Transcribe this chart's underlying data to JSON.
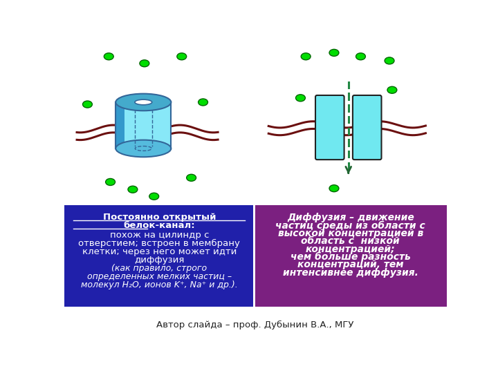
{
  "bg_color": "#ffffff",
  "left_panel_color": "#2020aa",
  "right_panel_color": "#7b2080",
  "panel_text_color": "#ffffff",
  "membrane_color": "#6b1010",
  "particle_color": "#00dd00",
  "particle_edge": "#006600",
  "channel_fill": "#70e8f0",
  "channel_edge": "#222222",
  "dashed_line_color": "#228844",
  "arrow_color": "#226633",
  "author_text": "Автор слайда – проф. Дубынин В.А., МГУ",
  "left_title1": "Постоянно открытый",
  "left_title2": "белок-канал:",
  "left_body1": "похож на цилиндр с",
  "left_body2": "отверстием; встроен в мембрану",
  "left_body3": "клетки; через него может идти",
  "left_body4": "диффузия",
  "left_italic1": "(как правило, строго",
  "left_italic2": "определенных мелких частиц –",
  "left_italic3": "молекул Н₂О, ионов K⁺, Na⁺ и др.).",
  "right_line1": "Диффузия – движение",
  "right_line2": "частиц среды из области с",
  "right_line3": "высокой концентрацией в",
  "right_line4": "область с  низкой",
  "right_line5": "концентрацией;",
  "right_line6": "чем больше разность",
  "right_line7": "концентраций, тем",
  "right_line8": "интенсивнее диффузия."
}
